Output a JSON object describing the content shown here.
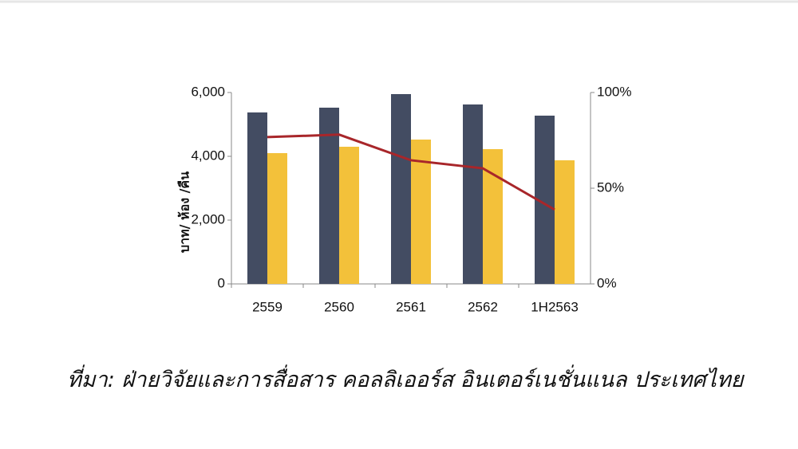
{
  "chart_data": {
    "type": "bar_line",
    "categories": [
      "2559",
      "2560",
      "2561",
      "2562",
      "1H2563"
    ],
    "y_label": "บาท/ ห้อง /คืน",
    "series": [
      {
        "type": "bar",
        "color": "#434c62",
        "values": [
          5375,
          5525,
          5950,
          5625,
          5275
        ]
      },
      {
        "type": "bar",
        "color": "#f3c13a",
        "values": [
          4100,
          4300,
          4525,
          4225,
          3875
        ]
      },
      {
        "type": "line",
        "axis": "y2",
        "color": "#a8262a",
        "values": [
          76.7,
          78,
          64.6,
          60.4,
          38.8
        ]
      }
    ],
    "ylim": [
      0,
      6000
    ],
    "yticks": [
      0,
      {
        "value": 2000,
        "label": "2,000"
      },
      {
        "value": 4000,
        "label": "4,000"
      },
      {
        "value": 6000,
        "label": "6,000"
      }
    ],
    "y2lim": [
      0,
      100
    ],
    "y2ticks": [
      {
        "value": 0,
        "label": "0%"
      },
      {
        "value": 50,
        "label": "50%"
      },
      {
        "value": 100,
        "label": "100%"
      }
    ]
  },
  "caption": "ที่มา: ฝ่ายวิจัยและการสื่อสาร คอลลิเออร์ส อินเตอร์เนชั่นแนล ประเทศไทย"
}
